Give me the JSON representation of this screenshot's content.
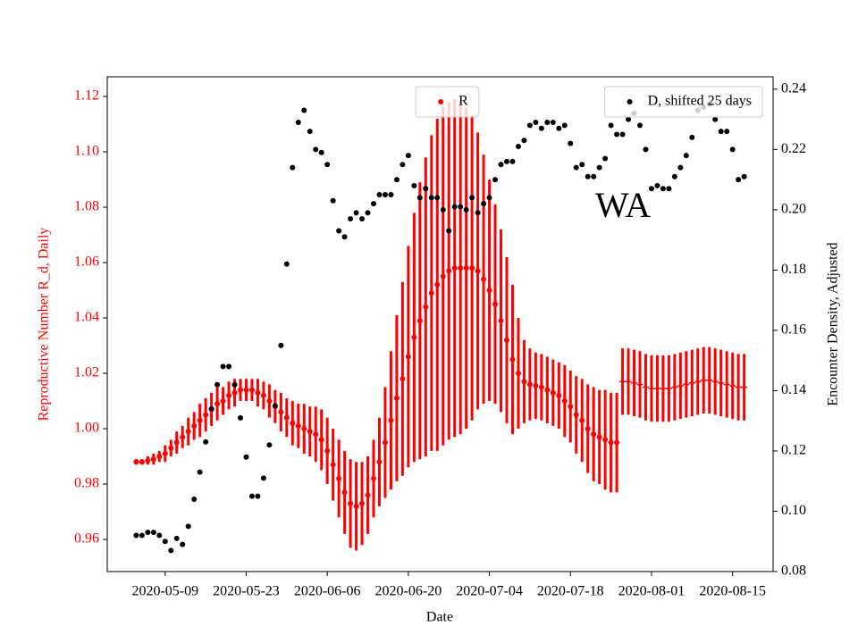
{
  "chart_data": {
    "type": "scatter",
    "x_label": "Date",
    "y_label": "Reproductive Number R_d, Daily",
    "y2_label": "Encounter Density, Adjusted",
    "annotation": "WA",
    "x": [
      "2020-05-04",
      "2020-05-05",
      "2020-05-06",
      "2020-05-07",
      "2020-05-08",
      "2020-05-09",
      "2020-05-10",
      "2020-05-11",
      "2020-05-12",
      "2020-05-13",
      "2020-05-14",
      "2020-05-15",
      "2020-05-16",
      "2020-05-17",
      "2020-05-18",
      "2020-05-19",
      "2020-05-20",
      "2020-05-21",
      "2020-05-22",
      "2020-05-23",
      "2020-05-24",
      "2020-05-25",
      "2020-05-26",
      "2020-05-27",
      "2020-05-28",
      "2020-05-29",
      "2020-05-30",
      "2020-05-31",
      "2020-06-01",
      "2020-06-02",
      "2020-06-03",
      "2020-06-04",
      "2020-06-05",
      "2020-06-06",
      "2020-06-07",
      "2020-06-08",
      "2020-06-09",
      "2020-06-10",
      "2020-06-11",
      "2020-06-12",
      "2020-06-13",
      "2020-06-14",
      "2020-06-15",
      "2020-06-16",
      "2020-06-17",
      "2020-06-18",
      "2020-06-19",
      "2020-06-20",
      "2020-06-21",
      "2020-06-22",
      "2020-06-23",
      "2020-06-24",
      "2020-06-25",
      "2020-06-26",
      "2020-06-27",
      "2020-06-28",
      "2020-06-29",
      "2020-06-30",
      "2020-07-01",
      "2020-07-02",
      "2020-07-03",
      "2020-07-04",
      "2020-07-05",
      "2020-07-06",
      "2020-07-07",
      "2020-07-08",
      "2020-07-09",
      "2020-07-10",
      "2020-07-11",
      "2020-07-12",
      "2020-07-13",
      "2020-07-14",
      "2020-07-15",
      "2020-07-16",
      "2020-07-17",
      "2020-07-18",
      "2020-07-19",
      "2020-07-20",
      "2020-07-21",
      "2020-07-22",
      "2020-07-23",
      "2020-07-24",
      "2020-07-25",
      "2020-07-26",
      "2020-07-27",
      "2020-07-28",
      "2020-07-29",
      "2020-07-30",
      "2020-07-31",
      "2020-08-01",
      "2020-08-02",
      "2020-08-03",
      "2020-08-04",
      "2020-08-05",
      "2020-08-06",
      "2020-08-07",
      "2020-08-08",
      "2020-08-09",
      "2020-08-10",
      "2020-08-11",
      "2020-08-12",
      "2020-08-13",
      "2020-08-14",
      "2020-08-15",
      "2020-08-16",
      "2020-08-17"
    ],
    "xlim": [
      "2020-04-29",
      "2020-08-22"
    ],
    "xticks": [
      "2020-05-09",
      "2020-05-23",
      "2020-06-06",
      "2020-06-20",
      "2020-07-04",
      "2020-07-18",
      "2020-08-01",
      "2020-08-15"
    ],
    "ylim": [
      0.9484,
      1.1271
    ],
    "yticks": [
      0.96,
      0.98,
      {
        "value": 1,
        "label": "1.00"
      },
      1.02,
      1.04,
      1.06,
      1.08,
      {
        "value": 1.1,
        "label": "1.10"
      },
      1.12
    ],
    "y2lim": [
      0.08,
      0.2441
    ],
    "y2ticks": [
      0.08,
      {
        "value": 0.1,
        "label": "0.10"
      },
      0.12,
      0.14,
      0.16,
      0.18,
      {
        "value": 0.2,
        "label": "0.20"
      },
      0.22,
      0.24
    ],
    "series": [
      {
        "name": "R",
        "color": "#ff0000",
        "marker": "o",
        "legend": "upper center",
        "values": [
          0.988,
          0.988,
          0.9885,
          0.989,
          0.99,
          0.991,
          0.993,
          0.995,
          0.997,
          0.999,
          1.001,
          1.003,
          1.005,
          1.007,
          1.009,
          1.01,
          1.012,
          1.013,
          1.014,
          1.014,
          1.014,
          1.013,
          1.012,
          1.01,
          1.008,
          1.006,
          1.004,
          1.002,
          1.001,
          1.0,
          0.999,
          0.998,
          0.996,
          0.992,
          0.987,
          0.982,
          0.977,
          0.973,
          0.972,
          0.973,
          0.976,
          0.982,
          0.988,
          0.995,
          1.003,
          1.011,
          1.018,
          1.026,
          1.033,
          1.039,
          1.044,
          1.049,
          1.052,
          1.055,
          1.057,
          1.058,
          1.058,
          1.058,
          1.058,
          1.057,
          1.054,
          1.05,
          1.045,
          1.039,
          1.032,
          1.025,
          1.02,
          1.017,
          1.016,
          1.0155,
          1.015,
          1.014,
          1.013,
          1.012,
          1.01,
          1.008,
          1.005,
          1.003,
          1.0,
          0.998,
          0.997,
          0.996,
          0.995,
          0.995,
          null,
          null,
          null,
          null,
          null,
          null,
          null,
          null,
          null,
          null,
          null,
          null,
          null,
          null,
          null,
          null,
          null,
          null,
          null,
          null,
          null,
          null
        ],
        "errors": [
          0.001,
          0.001,
          0.0015,
          0.002,
          0.002,
          0.003,
          0.003,
          0.004,
          0.004,
          0.005,
          0.005,
          0.006,
          0.006,
          0.006,
          0.006,
          0.005,
          0.005,
          0.005,
          0.004,
          0.004,
          0.004,
          0.005,
          0.005,
          0.006,
          0.006,
          0.007,
          0.007,
          0.008,
          0.008,
          0.009,
          0.009,
          0.01,
          0.011,
          0.012,
          0.013,
          0.014,
          0.015,
          0.016,
          0.016,
          0.015,
          0.014,
          0.014,
          0.016,
          0.02,
          0.025,
          0.03,
          0.035,
          0.04,
          0.045,
          0.05,
          0.054,
          0.057,
          0.06,
          0.061,
          0.061,
          0.061,
          0.06,
          0.058,
          0.055,
          0.05,
          0.045,
          0.04,
          0.036,
          0.033,
          0.03,
          0.027,
          0.02,
          0.015,
          0.013,
          0.012,
          0.012,
          0.012,
          0.012,
          0.012,
          0.013,
          0.013,
          0.014,
          0.015,
          0.016,
          0.017,
          0.017,
          0.018,
          0.018,
          0.018,
          null,
          null,
          null,
          null,
          null,
          null,
          null,
          null,
          null,
          null,
          null,
          null,
          null,
          null,
          null,
          null,
          null,
          null,
          null,
          null,
          null,
          null
        ]
      },
      {
        "color": "#ff0000",
        "marker": "_",
        "values": [
          null,
          null,
          null,
          null,
          null,
          null,
          null,
          null,
          null,
          null,
          null,
          null,
          null,
          null,
          null,
          null,
          null,
          null,
          null,
          null,
          null,
          null,
          null,
          null,
          null,
          null,
          null,
          null,
          null,
          null,
          null,
          null,
          null,
          null,
          null,
          null,
          null,
          null,
          null,
          null,
          null,
          null,
          null,
          null,
          null,
          null,
          null,
          null,
          null,
          null,
          null,
          null,
          null,
          null,
          null,
          null,
          null,
          null,
          null,
          null,
          null,
          null,
          null,
          null,
          null,
          null,
          null,
          null,
          null,
          null,
          null,
          null,
          null,
          null,
          null,
          null,
          null,
          null,
          null,
          null,
          null,
          null,
          null,
          null,
          1.017,
          1.017,
          1.0165,
          1.016,
          1.015,
          1.0145,
          1.0145,
          1.0145,
          1.0145,
          1.015,
          1.0155,
          1.016,
          1.0165,
          1.017,
          1.0175,
          1.0175,
          1.017,
          1.0165,
          1.016,
          1.0155,
          1.015,
          1.015
        ],
        "errors": [
          null,
          null,
          null,
          null,
          null,
          null,
          null,
          null,
          null,
          null,
          null,
          null,
          null,
          null,
          null,
          null,
          null,
          null,
          null,
          null,
          null,
          null,
          null,
          null,
          null,
          null,
          null,
          null,
          null,
          null,
          null,
          null,
          null,
          null,
          null,
          null,
          null,
          null,
          null,
          null,
          null,
          null,
          null,
          null,
          null,
          null,
          null,
          null,
          null,
          null,
          null,
          null,
          null,
          null,
          null,
          null,
          null,
          null,
          null,
          null,
          null,
          null,
          null,
          null,
          null,
          null,
          null,
          null,
          null,
          null,
          null,
          null,
          null,
          null,
          null,
          null,
          null,
          null,
          null,
          null,
          null,
          null,
          null,
          null,
          0.012,
          0.012,
          0.012,
          0.012,
          0.012,
          0.012,
          0.012,
          0.012,
          0.012,
          0.012,
          0.012,
          0.012,
          0.012,
          0.012,
          0.012,
          0.012,
          0.012,
          0.012,
          0.012,
          0.012,
          0.012,
          0.012
        ]
      },
      {
        "name": "D, shifted 25 days",
        "color": "#000000",
        "marker": "o",
        "axis": "y2",
        "legend": "upper right",
        "values": [
          0.092,
          0.092,
          0.093,
          0.093,
          0.092,
          0.09,
          0.087,
          0.091,
          0.089,
          0.095,
          0.104,
          0.113,
          0.123,
          0.134,
          0.142,
          0.148,
          0.148,
          0.142,
          0.131,
          0.118,
          0.105,
          0.105,
          0.111,
          0.122,
          0.135,
          0.155,
          0.182,
          0.214,
          0.229,
          0.233,
          0.226,
          0.22,
          0.219,
          0.215,
          0.203,
          0.193,
          0.191,
          0.197,
          0.199,
          0.197,
          0.199,
          0.202,
          0.205,
          0.205,
          0.205,
          0.21,
          0.215,
          0.218,
          0.208,
          0.204,
          0.207,
          0.204,
          0.204,
          0.2,
          0.193,
          0.201,
          0.201,
          0.2,
          0.204,
          0.199,
          0.202,
          0.204,
          0.21,
          0.215,
          0.216,
          0.216,
          0.221,
          0.223,
          0.228,
          0.229,
          0.227,
          0.229,
          0.229,
          0.227,
          0.228,
          0.222,
          0.214,
          0.215,
          0.211,
          0.211,
          0.214,
          0.217,
          0.228,
          0.225,
          0.225,
          0.23,
          0.232,
          0.228,
          0.22,
          0.207,
          0.208,
          0.207,
          0.207,
          0.211,
          0.214,
          0.218,
          0.224,
          0.233,
          0.234,
          0.235,
          0.23,
          0.226,
          0.226,
          0.22,
          0.21,
          0.211
        ]
      }
    ]
  }
}
